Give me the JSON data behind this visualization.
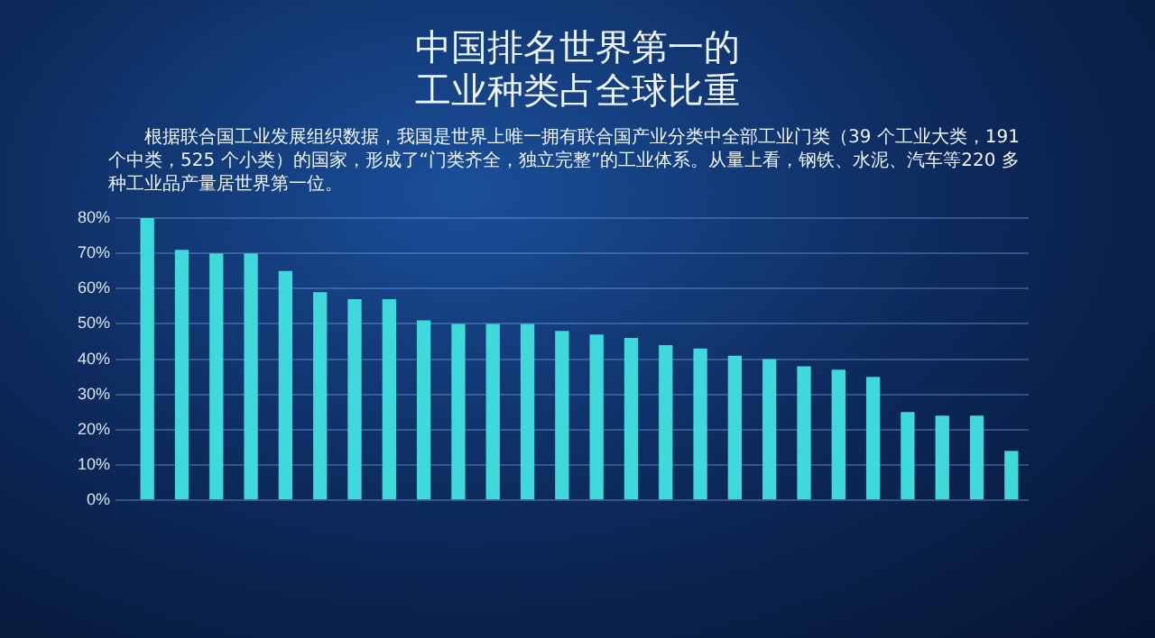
{
  "chart_data": {
    "type": "bar",
    "title": "中国排名世界第一的工业种类占全球比重",
    "subtitle": "根据联合国工业发展组织数据，我国是世界上唯一拥有联合国产业分类中全部工业门类（39 个工业大类，191 个中类，525 个小类）的国家，形成了“门类齐全，独立完整”的工业体系。从量上看，钢铁、水泥、汽车等220 多种工业品产量居世界第一位。",
    "categories": [
      null,
      null,
      null,
      null,
      null,
      null,
      null,
      null,
      null,
      null,
      null,
      null,
      null,
      null,
      null,
      null,
      null,
      null,
      null,
      null,
      null,
      null,
      null,
      null,
      null,
      null
    ],
    "values": [
      80,
      71,
      70,
      70,
      65,
      59,
      57,
      57,
      51,
      50,
      50,
      50,
      48,
      47,
      46,
      44,
      43,
      41,
      40,
      38,
      37,
      35,
      25,
      24,
      24,
      14
    ],
    "color": "#3fd9dc",
    "ylim": [
      0,
      80
    ],
    "yticks": [
      {
        "value": 0,
        "label": "0%"
      },
      {
        "value": 10,
        "label": "10%"
      },
      {
        "value": 20,
        "label": "20%"
      },
      {
        "value": 30,
        "label": "30%"
      },
      {
        "value": 40,
        "label": "40%"
      },
      {
        "value": 50,
        "label": "50%"
      },
      {
        "value": 60,
        "label": "60%"
      },
      {
        "value": 70,
        "label": "70%"
      },
      {
        "value": 80,
        "label": "80%"
      }
    ],
    "grid": "y"
  }
}
